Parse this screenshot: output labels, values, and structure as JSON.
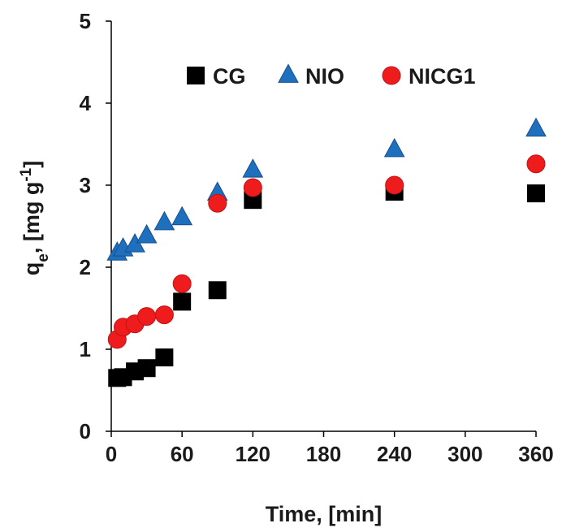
{
  "chart_data": {
    "type": "scatter",
    "xlabel": "Time, [min]",
    "ylabel": {
      "base": "q",
      "sub": "e",
      "rest": ", [mg g",
      "sup": "-1",
      "end": "]"
    },
    "xlim": [
      0,
      360
    ],
    "ylim": [
      0,
      5
    ],
    "xticks": [
      0,
      60,
      120,
      180,
      240,
      300,
      360
    ],
    "yticks": [
      0,
      1,
      2,
      3,
      4,
      5
    ],
    "grid": false,
    "legend_position": "top",
    "series": [
      {
        "name": "CG",
        "marker": "square",
        "color": "#000000",
        "x": [
          5,
          10,
          20,
          30,
          45,
          60,
          90,
          120,
          240,
          360
        ],
        "y": [
          0.65,
          0.66,
          0.73,
          0.77,
          0.9,
          1.58,
          1.72,
          2.82,
          2.92,
          2.9
        ]
      },
      {
        "name": "NIO",
        "marker": "triangle",
        "color": "#1f6fbf",
        "x": [
          5,
          10,
          20,
          30,
          45,
          60,
          90,
          120,
          240,
          360
        ],
        "y": [
          2.17,
          2.22,
          2.27,
          2.38,
          2.54,
          2.6,
          2.9,
          3.18,
          3.43,
          3.68
        ]
      },
      {
        "name": "NICG1",
        "marker": "circle",
        "color": "#ee1c1c",
        "x": [
          5,
          10,
          20,
          30,
          45,
          60,
          90,
          120,
          240,
          360
        ],
        "y": [
          1.12,
          1.27,
          1.31,
          1.4,
          1.42,
          1.8,
          2.78,
          2.97,
          3.0,
          3.26
        ]
      }
    ]
  }
}
